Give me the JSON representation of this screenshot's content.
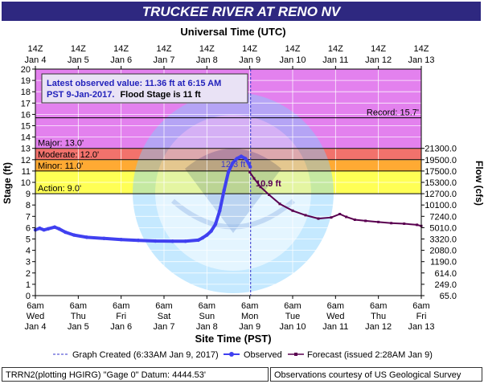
{
  "title": "TRUCKEE RIVER AT RENO NV",
  "top_axis_title": "Universal Time (UTC)",
  "bottom_axis_title": "Site Time (PST)",
  "left_axis_label": "Stage (ft)",
  "right_axis_label": "Flow (cfs)",
  "info_box": {
    "line1": "Latest observed value: 11.36 ft at 6:15 AM",
    "line2a": "PST 9-Jan-2017.",
    "line2b": "Flood Stage is 11 ft"
  },
  "thresholds": {
    "record": {
      "label": "Record: 15.7'",
      "value": 15.7
    },
    "major": {
      "label": "Major: 13.0'",
      "value": 13.0,
      "color": "#e381ee"
    },
    "moderate": {
      "label": "Moderate: 12.0'",
      "value": 12.0,
      "color": "#f2726c"
    },
    "minor": {
      "label": "Minor: 11.0'",
      "value": 11.0,
      "color": "#ffaa33"
    },
    "action": {
      "label": "Action: 9.0'",
      "value": 9.0,
      "color": "#ffff55"
    }
  },
  "annotations": {
    "peak_label": "12.3 ft",
    "forecast_start_label": "10.9 ft"
  },
  "legend": {
    "graph_created": "Graph Created (6:33AM Jan 9, 2017)",
    "observed": "Observed",
    "forecast": "Forecast (issued 2:28AM Jan 9)"
  },
  "footer": {
    "left": "TRRN2(plotting HGIRG) \"Gage 0\" Datum: 4444.53'",
    "right": "Observations courtesy of US Geological Survey"
  },
  "colors": {
    "title_bg": "#2e2880",
    "observed": "#4040f0",
    "forecast": "#5a0050",
    "created_line": "#3333cc"
  },
  "chart_data": {
    "type": "line",
    "ylim": [
      0,
      20
    ],
    "yticks": [
      0,
      1,
      2,
      3,
      4,
      5,
      6,
      7,
      8,
      9,
      10,
      11,
      12,
      13,
      14,
      15,
      16,
      17,
      18,
      19,
      20
    ],
    "xlim_days": [
      0,
      9
    ],
    "right_axis_ticks": [
      {
        "stage": 0,
        "label": "65.0"
      },
      {
        "stage": 1,
        "label": "249.0"
      },
      {
        "stage": 2,
        "label": "614.0"
      },
      {
        "stage": 3,
        "label": "1190.0"
      },
      {
        "stage": 4,
        "label": "2080.0"
      },
      {
        "stage": 5,
        "label": "3320.0"
      },
      {
        "stage": 6,
        "label": "5010.0"
      },
      {
        "stage": 7,
        "label": "7240.0"
      },
      {
        "stage": 8,
        "label": "10100.0"
      },
      {
        "stage": 9,
        "label": "12700.0"
      },
      {
        "stage": 10,
        "label": "15300.0"
      },
      {
        "stage": 11,
        "label": "17500.0"
      },
      {
        "stage": 12,
        "label": "19500.0"
      },
      {
        "stage": 13,
        "label": "21300.0"
      }
    ],
    "bottom_ticks": [
      {
        "l1": "6am",
        "l2": "Wed",
        "l3": "Jan 4"
      },
      {
        "l1": "6am",
        "l2": "Thu",
        "l3": "Jan 5"
      },
      {
        "l1": "6am",
        "l2": "Fri",
        "l3": "Jan 6"
      },
      {
        "l1": "6am",
        "l2": "Sat",
        "l3": "Jan 7"
      },
      {
        "l1": "6am",
        "l2": "Sun",
        "l3": "Jan 8"
      },
      {
        "l1": "6am",
        "l2": "Mon",
        "l3": "Jan 9"
      },
      {
        "l1": "6am",
        "l2": "Tue",
        "l3": "Jan 10"
      },
      {
        "l1": "6am",
        "l2": "Wed",
        "l3": "Jan 11"
      },
      {
        "l1": "6am",
        "l2": "Thu",
        "l3": "Jan 12"
      },
      {
        "l1": "6am",
        "l2": "Fri",
        "l3": "Jan 13"
      }
    ],
    "top_ticks": [
      {
        "l1": "14Z",
        "l2": "Jan 4"
      },
      {
        "l1": "14Z",
        "l2": "Jan 5"
      },
      {
        "l1": "14Z",
        "l2": "Jan 6"
      },
      {
        "l1": "14Z",
        "l2": "Jan 7"
      },
      {
        "l1": "14Z",
        "l2": "Jan 8"
      },
      {
        "l1": "14Z",
        "l2": "Jan 9"
      },
      {
        "l1": "14Z",
        "l2": "Jan 10"
      },
      {
        "l1": "14Z",
        "l2": "Jan 11"
      },
      {
        "l1": "14Z",
        "l2": "Jan 12"
      },
      {
        "l1": "14Z",
        "l2": "Jan 13"
      }
    ],
    "graph_created_day": 5.02,
    "series": [
      {
        "name": "Observed",
        "x_days": [
          0.0,
          0.1,
          0.2,
          0.3,
          0.45,
          0.55,
          0.7,
          0.9,
          1.2,
          1.6,
          2.0,
          2.4,
          2.8,
          3.2,
          3.5,
          3.8,
          3.9,
          4.0,
          4.1,
          4.2,
          4.3,
          4.4,
          4.5,
          4.6,
          4.7,
          4.8,
          4.9,
          4.97,
          5.01
        ],
        "y": [
          5.8,
          5.95,
          5.8,
          5.9,
          6.05,
          5.9,
          5.6,
          5.35,
          5.15,
          5.05,
          4.95,
          4.88,
          4.82,
          4.8,
          4.8,
          4.9,
          5.1,
          5.35,
          5.7,
          6.3,
          7.5,
          9.3,
          10.9,
          11.7,
          12.1,
          12.3,
          12.1,
          11.7,
          11.36
        ]
      },
      {
        "name": "Forecast (issued 2:28AM Jan 9)",
        "x_days": [
          5.0,
          5.1,
          5.25,
          5.45,
          5.7,
          6.0,
          6.3,
          6.6,
          6.9,
          7.1,
          7.25,
          7.45,
          7.7,
          8.0,
          8.3,
          8.6,
          8.9,
          9.0
        ],
        "y": [
          10.9,
          10.35,
          9.6,
          8.9,
          8.1,
          7.5,
          7.1,
          6.8,
          6.9,
          7.2,
          6.95,
          6.7,
          6.6,
          6.5,
          6.4,
          6.35,
          6.25,
          6.15
        ]
      }
    ]
  }
}
